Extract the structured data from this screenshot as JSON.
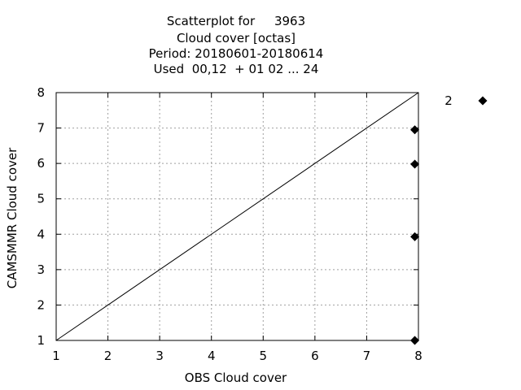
{
  "chart_data": {
    "type": "scatter",
    "title_lines": [
      "Scatterplot for     3963",
      "Cloud cover [octas]",
      "Period: 20180601-20180614",
      "Used  00,12  + 01 02 ... 24"
    ],
    "xlabel": "OBS Cloud cover",
    "ylabel": "CAMSMMR Cloud cover",
    "xlim": [
      1,
      8
    ],
    "ylim": [
      1,
      8
    ],
    "xticks": [
      1,
      2,
      3,
      4,
      5,
      6,
      7,
      8
    ],
    "yticks": [
      1,
      2,
      3,
      4,
      5,
      6,
      7,
      8
    ],
    "grid": true,
    "diagonal": true,
    "legend": {
      "label": "2",
      "marker": "diamond",
      "placement": "right"
    },
    "series": [
      {
        "name": "2",
        "marker": "diamond",
        "color": "#000000",
        "points": [
          {
            "x": 7.93,
            "y": 6.95
          },
          {
            "x": 7.93,
            "y": 5.98
          },
          {
            "x": 7.93,
            "y": 3.93
          },
          {
            "x": 7.93,
            "y": 1.0
          }
        ]
      }
    ]
  }
}
